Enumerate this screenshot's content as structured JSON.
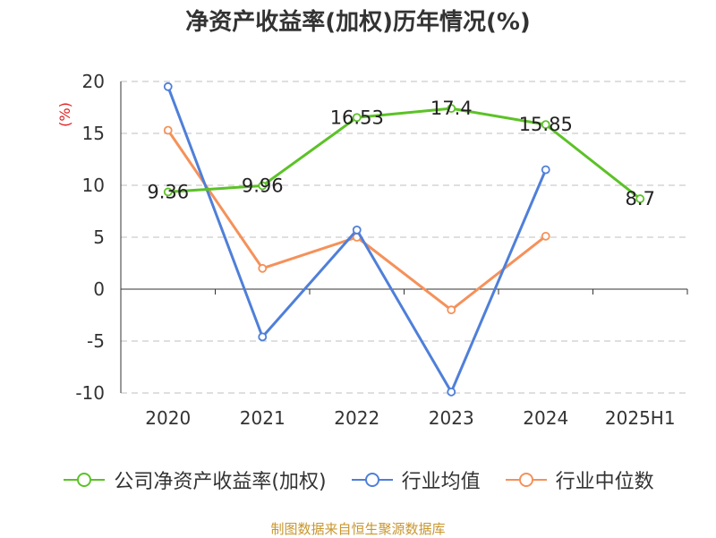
{
  "title": "净资产收益率(加权)历年情况(%)",
  "source": "制图数据来自恒生聚源数据库",
  "chart_data": {
    "type": "line",
    "title": "净资产收益率(加权)历年情况(%)",
    "ylabel": "(%)",
    "ylim": [
      -10,
      20
    ],
    "yticks": [
      20,
      15,
      10,
      5,
      0,
      -5,
      -10
    ],
    "categories": [
      "2020",
      "2021",
      "2022",
      "2023",
      "2024",
      "2025H1"
    ],
    "grid": true,
    "legend_position": "bottom",
    "series": [
      {
        "name": "公司净资产收益率(加权)",
        "color": "#5cc227",
        "values": [
          9.36,
          9.96,
          16.53,
          17.4,
          15.85,
          8.7
        ],
        "labels": [
          "9.36",
          "9.96",
          "16.53",
          "17.4",
          "15.85",
          "8.7"
        ]
      },
      {
        "name": "行业均值",
        "color": "#4f7fd9",
        "values": [
          19.5,
          -4.6,
          5.7,
          -9.9,
          11.5,
          null
        ]
      },
      {
        "name": "行业中位数",
        "color": "#f5915a",
        "values": [
          15.3,
          2.0,
          5.0,
          -2.0,
          5.1,
          null
        ]
      }
    ]
  }
}
